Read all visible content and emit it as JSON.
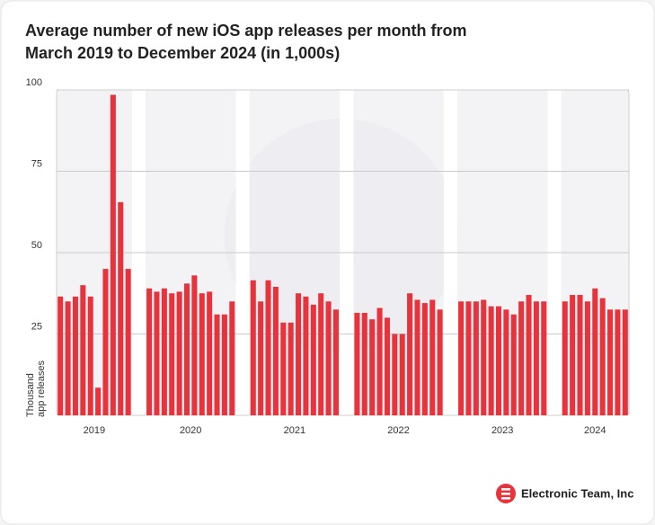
{
  "chart_data": {
    "type": "bar",
    "title": [
      "Average number of new iOS app releases per month from",
      "March 2019 to December 2024 (in 1,000s)"
    ],
    "y_label": [
      "Thousand",
      "app releases"
    ],
    "color": "#e8323c",
    "ylim": [
      0,
      100
    ],
    "yticks": [
      25,
      50,
      75,
      100
    ],
    "grid": true,
    "groups": [
      {
        "name": "2019",
        "values": [
          36.5,
          35,
          36.5,
          40,
          36.5,
          8.5,
          45,
          98.5,
          65.5,
          45
        ]
      },
      {
        "name": "2020",
        "values": [
          39,
          38,
          39,
          37.5,
          38,
          40.5,
          43,
          37.5,
          38,
          31,
          31,
          35
        ]
      },
      {
        "name": "2021",
        "values": [
          41.5,
          35,
          41.5,
          39.5,
          28.5,
          28.5,
          37.5,
          36.5,
          34,
          37.5,
          35,
          32.5
        ]
      },
      {
        "name": "2022",
        "values": [
          31.5,
          31.5,
          29.5,
          33,
          30,
          25,
          25,
          37.5,
          35.5,
          34.5,
          35.5,
          32.5
        ]
      },
      {
        "name": "2023",
        "values": [
          35,
          35,
          35,
          35.5,
          33.5,
          33.5,
          32.5,
          31,
          35,
          37,
          35,
          35
        ]
      },
      {
        "name": "2024",
        "values": [
          35,
          37,
          37,
          35,
          39,
          36,
          32.5,
          32.5,
          32.5
        ]
      }
    ],
    "source": "Electronic Team, Inc"
  }
}
